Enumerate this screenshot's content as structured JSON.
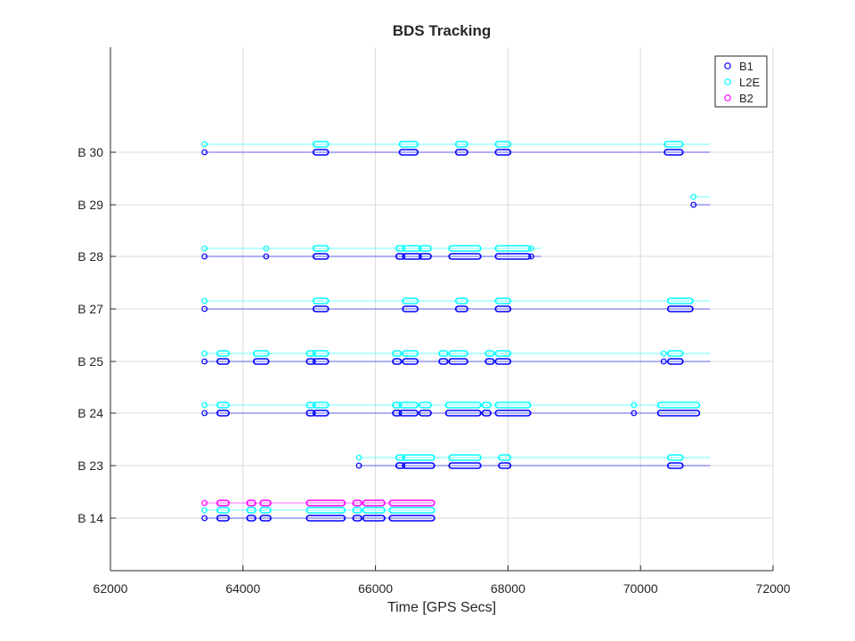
{
  "chart_data": {
    "type": "scatter",
    "title": "BDS Tracking",
    "xlabel": "Time [GPS Secs]",
    "ylabel": "",
    "xlim": [
      62000,
      72000
    ],
    "xticks": [
      62000,
      64000,
      66000,
      68000,
      70000,
      72000
    ],
    "grid": true,
    "legend_position": "top-right",
    "series": [
      {
        "name": "B1",
        "color": "#0000ff"
      },
      {
        "name": "L2E",
        "color": "#00ffff"
      },
      {
        "name": "B2",
        "color": "#ff00ff"
      }
    ],
    "satellites": [
      {
        "label": "B 14",
        "line_end": 66850,
        "tracks": {
          "B1": [
            [
              63420
            ],
            [
              63650,
              63750
            ],
            [
              64100,
              64150
            ],
            [
              64300,
              64380
            ],
            [
              65000,
              65500
            ],
            [
              65700,
              65750
            ],
            [
              65850,
              66100
            ],
            [
              66250,
              66850
            ]
          ],
          "L2E": [
            [
              63420
            ],
            [
              63650,
              63750
            ],
            [
              64100,
              64150
            ],
            [
              64300,
              64380
            ],
            [
              65000,
              65500
            ],
            [
              65700,
              65750
            ],
            [
              65850,
              66100
            ],
            [
              66250,
              66850
            ]
          ],
          "B2": [
            [
              63420
            ],
            [
              63650,
              63750
            ],
            [
              64100,
              64150
            ],
            [
              64300,
              64380
            ],
            [
              65000,
              65500
            ],
            [
              65700,
              65750
            ],
            [
              65850,
              66100
            ],
            [
              66250,
              66850
            ]
          ]
        }
      },
      {
        "label": "B 23",
        "line_end": 71050,
        "tracks": {
          "B1": [
            [
              65750
            ],
            [
              66350,
              66400
            ],
            [
              66450,
              66850
            ],
            [
              67150,
              67550
            ],
            [
              67900,
              68000
            ],
            [
              70450,
              70600
            ]
          ],
          "L2E": [
            [
              65750
            ],
            [
              66350,
              66400
            ],
            [
              66450,
              66850
            ],
            [
              67150,
              67550
            ],
            [
              67900,
              68000
            ],
            [
              70450,
              70600
            ]
          ]
        }
      },
      {
        "label": "B 24",
        "line_end": 70850,
        "tracks": {
          "B1": [
            [
              63420
            ],
            [
              63650,
              63750
            ],
            [
              65000,
              65050
            ],
            [
              65100,
              65250
            ],
            [
              66300,
              66350
            ],
            [
              66400,
              66600
            ],
            [
              66700,
              66800
            ],
            [
              67100,
              67550
            ],
            [
              67650,
              67700
            ],
            [
              67850,
              68300
            ],
            [
              69900
            ],
            [
              70300,
              70850
            ]
          ],
          "L2E": [
            [
              63420
            ],
            [
              63650,
              63750
            ],
            [
              65000,
              65050
            ],
            [
              65100,
              65250
            ],
            [
              66300,
              66350
            ],
            [
              66400,
              66600
            ],
            [
              66700,
              66800
            ],
            [
              67100,
              67550
            ],
            [
              67650,
              67700
            ],
            [
              67850,
              68300
            ],
            [
              69900
            ],
            [
              70300,
              70850
            ]
          ]
        }
      },
      {
        "label": "B 25",
        "line_end": 71050,
        "tracks": {
          "B1": [
            [
              63420
            ],
            [
              63650,
              63750
            ],
            [
              64200,
              64350
            ],
            [
              65000,
              65050
            ],
            [
              65100,
              65250
            ],
            [
              66300,
              66350
            ],
            [
              66450,
              66600
            ],
            [
              67000,
              67050
            ],
            [
              67150,
              67350
            ],
            [
              67700,
              67750
            ],
            [
              67850,
              68000
            ],
            [
              70350
            ],
            [
              70450,
              70600
            ]
          ],
          "L2E": [
            [
              63420
            ],
            [
              63650,
              63750
            ],
            [
              64200,
              64350
            ],
            [
              65000,
              65050
            ],
            [
              65100,
              65250
            ],
            [
              66300,
              66350
            ],
            [
              66450,
              66600
            ],
            [
              67000,
              67050
            ],
            [
              67150,
              67350
            ],
            [
              67700,
              67750
            ],
            [
              67850,
              68000
            ],
            [
              70350
            ],
            [
              70450,
              70600
            ]
          ]
        }
      },
      {
        "label": "B 27",
        "line_end": 71050,
        "tracks": {
          "B1": [
            [
              63420
            ],
            [
              65100,
              65250
            ],
            [
              66450,
              66600
            ],
            [
              67250,
              67350
            ],
            [
              67850,
              68000
            ],
            [
              70450,
              70750
            ]
          ],
          "L2E": [
            [
              63420
            ],
            [
              65100,
              65250
            ],
            [
              66450,
              66600
            ],
            [
              67250,
              67350
            ],
            [
              67850,
              68000
            ],
            [
              70450,
              70750
            ]
          ]
        }
      },
      {
        "label": "B 28",
        "line_end": 68500,
        "tracks": {
          "B1": [
            [
              63420
            ],
            [
              64350
            ],
            [
              65100,
              65250
            ],
            [
              66350,
              66400
            ],
            [
              66450,
              66650
            ],
            [
              66700,
              66800
            ],
            [
              67150,
              67550
            ],
            [
              67850,
              68300
            ],
            [
              68350
            ]
          ],
          "L2E": [
            [
              63420
            ],
            [
              64350
            ],
            [
              65100,
              65250
            ],
            [
              66350,
              66400
            ],
            [
              66450,
              66650
            ],
            [
              66700,
              66800
            ],
            [
              67150,
              67550
            ],
            [
              67850,
              68300
            ],
            [
              68350
            ]
          ]
        }
      },
      {
        "label": "B 29",
        "line_end": 71050,
        "tracks": {
          "B1": [
            [
              70800
            ]
          ],
          "L2E": [
            [
              70800
            ]
          ]
        }
      },
      {
        "label": "B 30",
        "line_end": 71050,
        "tracks": {
          "B1": [
            [
              63420
            ],
            [
              65100,
              65250
            ],
            [
              66400,
              66600
            ],
            [
              67250,
              67350
            ],
            [
              67850,
              68000
            ],
            [
              70400,
              70600
            ]
          ],
          "L2E": [
            [
              63420
            ],
            [
              65100,
              65250
            ],
            [
              66400,
              66600
            ],
            [
              67250,
              67350
            ],
            [
              67850,
              68000
            ],
            [
              70400,
              70600
            ]
          ]
        }
      }
    ]
  }
}
